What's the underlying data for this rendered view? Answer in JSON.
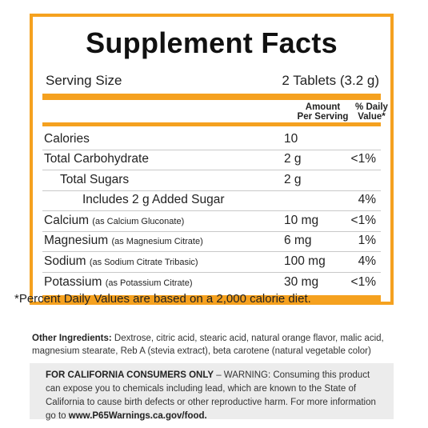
{
  "title": "Supplement Facts",
  "serving": {
    "label": "Serving Size",
    "value": "2 Tablets (3.2 g)"
  },
  "columns": {
    "amount": "Amount\nPer Serving",
    "daily_value": "% Daily\nValue*"
  },
  "rows": [
    {
      "name": "Calories",
      "note": "",
      "amount": "10",
      "dv": ""
    },
    {
      "name": "Total Carbohydrate",
      "note": "",
      "amount": "2 g",
      "dv": "<1%"
    },
    {
      "name": "Total Sugars",
      "note": "",
      "amount": "2 g",
      "dv": ""
    },
    {
      "name": "Includes 2 g Added Sugar",
      "note": "",
      "amount": "",
      "dv": "4%"
    },
    {
      "name": "Calcium",
      "note": "(as Calcium Gluconate)",
      "amount": "10 mg",
      "dv": "<1%"
    },
    {
      "name": "Magnesium",
      "note": "(as Magnesium Citrate)",
      "amount": "6 mg",
      "dv": "1%"
    },
    {
      "name": "Sodium",
      "note": "(as Sodium Citrate Tribasic)",
      "amount": "100 mg",
      "dv": "4%"
    },
    {
      "name": "Potassium",
      "note": "(as Potassium Citrate)",
      "amount": "30 mg",
      "dv": "<1%"
    }
  ],
  "footnote": "*Percent Daily Values are based on a 2,000 calorie diet.",
  "ingredients": {
    "label": "Other Ingredients:",
    "text": "Dextrose, citric acid, stearic acid, natural orange flavor, malic acid, magnesium stearate, Reb A (stevia extract), beta carotene (natural vegetable color)"
  },
  "warning": {
    "label": "FOR CALIFORNIA CONSUMERS ONLY",
    "text": "– WARNING: Consuming this product can expose you to chemicals including lead, which are known to the State of California to cause birth defects or other reproductive harm. For more information go to",
    "link": "www.P65Warnings.ca.gov/food."
  },
  "colors": {
    "accent": "#f5a11f",
    "warning_bg": "#ececec"
  }
}
